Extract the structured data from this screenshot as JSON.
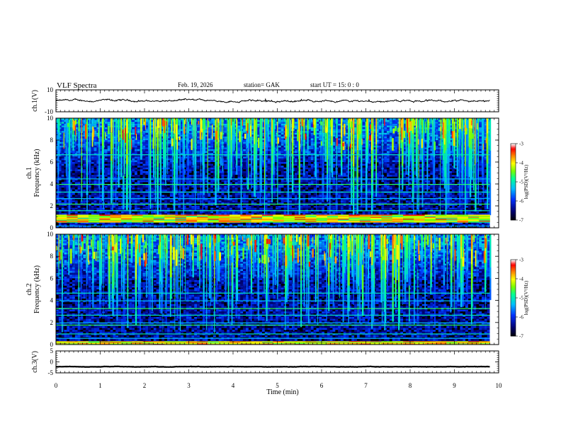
{
  "header": {
    "title": "VLF  Spectra",
    "date": "Feb. 19, 2026",
    "station": "station= GAK",
    "start": "start  UT  =    15: 0   : 0"
  },
  "chart_data": [
    {
      "type": "line",
      "name": "ch1-voltage",
      "ylabel": "ch.1(V)",
      "ylim": [
        -10,
        10
      ],
      "yticks": [
        "10",
        "-10"
      ],
      "xlim": [
        0,
        10
      ],
      "baseline_value": 0,
      "noise_amplitude": 1.5
    },
    {
      "type": "heatmap",
      "name": "ch1-spectrogram",
      "ylabel_channel": "ch.1",
      "ylabel": "Frequency  (kHz)",
      "ylim": [
        0,
        10
      ],
      "yticks": [
        "0",
        "2",
        "4",
        "6",
        "8",
        "10"
      ],
      "xlim": [
        0,
        9.8
      ],
      "colorbar": {
        "label": "log(PSD)(V²/Hz)",
        "range": [
          -7,
          -3
        ],
        "ticks": [
          "-3",
          "-4",
          "-5",
          "-6",
          "-7"
        ]
      },
      "features": {
        "strong_band_khz": [
          0.5,
          1.2
        ],
        "horizontal_lines_khz": [
          0.2,
          1.6,
          2.2,
          2.7,
          3.3,
          4.0,
          4.5,
          6.7
        ],
        "broadband_activity": "vertical impulsive streaks (sferics) strongest 6–10 kHz"
      }
    },
    {
      "type": "heatmap",
      "name": "ch2-spectrogram",
      "ylabel_channel": "ch.2",
      "ylabel": "Frequency  (kHz)",
      "ylim": [
        0,
        10
      ],
      "yticks": [
        "0",
        "2",
        "4",
        "6",
        "8",
        "10"
      ],
      "xlim": [
        0,
        9.8
      ],
      "colorbar": {
        "label": "log(PSD)(V²/Hz)",
        "range": [
          -7,
          -3
        ],
        "ticks": [
          "-3",
          "-4",
          "-5",
          "-6",
          "-7"
        ]
      },
      "features": {
        "strong_band_khz": [
          0.0,
          0.3
        ],
        "horizontal_lines_khz": [
          0.6,
          1.0,
          1.8,
          2.0,
          2.7,
          3.3,
          4.0,
          4.7
        ],
        "broadband_activity": "vertical impulsive streaks (sferics) strongest 6–10 kHz"
      }
    },
    {
      "type": "line",
      "name": "ch3-voltage",
      "ylabel": "ch.3(V)",
      "ylim": [
        -5,
        5
      ],
      "yticks": [
        "5",
        "0",
        "-5"
      ],
      "xlim": [
        0,
        10
      ],
      "baseline_value": -2.2,
      "noise_amplitude": 0.15
    }
  ],
  "time_axis": {
    "title": "Time  (min)",
    "ticks": [
      "0",
      "1",
      "2",
      "3",
      "4",
      "5",
      "6",
      "7",
      "8",
      "9",
      "10"
    ],
    "range": [
      0,
      10
    ]
  },
  "colors": {
    "background": "#000000",
    "colormap": [
      "#000000",
      "#000080",
      "#0040ff",
      "#00c0ff",
      "#00ff80",
      "#80ff00",
      "#ffff00",
      "#ff8000",
      "#ff0000",
      "#ffffff"
    ]
  }
}
